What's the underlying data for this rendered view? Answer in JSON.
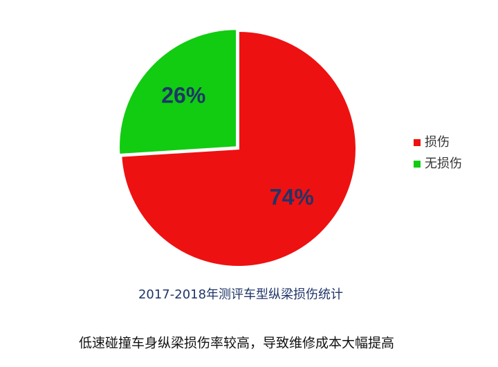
{
  "chart_data": {
    "type": "pie",
    "categories": [
      "损伤",
      "无损伤"
    ],
    "values": [
      74,
      26
    ],
    "value_labels": [
      "74%",
      "26%"
    ],
    "colors": [
      "#ee1111",
      "#11cc11"
    ],
    "title": "2017-2018年测评车型纵梁损伤统计",
    "annotation": "低速碰撞车身纵梁损伤率较高，导致维修成本大幅提高",
    "legend": "right"
  }
}
